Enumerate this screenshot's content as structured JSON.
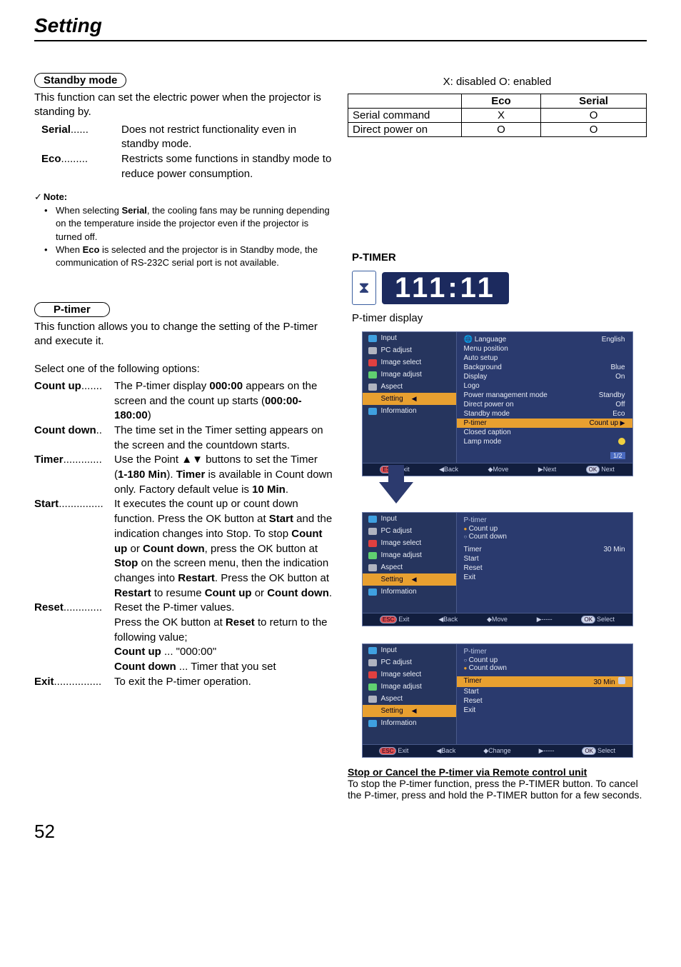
{
  "page_title": "Setting",
  "page_number": "52",
  "standby": {
    "heading": "Standby mode",
    "intro": "This function can set the electric power when the projector is standing by.",
    "rows": [
      {
        "term": "Serial",
        "dots": "......",
        "desc": "Does not restrict functionality even in standby mode."
      },
      {
        "term": "Eco",
        "dots": ".........",
        "desc": "Restricts some functions in standby mode to reduce power consumption."
      }
    ],
    "note_label": "Note:",
    "notes": [
      {
        "pre": "When selecting ",
        "b1": "Serial",
        "post": ", the cooling fans may be running depending on the temperature inside the projector even if  the projector is turned off."
      },
      {
        "pre": "When ",
        "b1": "Eco",
        "post": " is selected and the projector is in Standby mode, the communication of RS-232C serial port is not available."
      }
    ]
  },
  "ptimer": {
    "heading": "P-timer",
    "intro": "This function allows you to change the setting of the P-timer and execute it.",
    "select_line": "Select one of the following options:",
    "rows": [
      {
        "term": "Count up",
        "dots": ".......",
        "desc_parts": [
          "The P-timer display ",
          "000:00",
          " appears on the screen and the count up starts (",
          "000:00-180:00",
          ")"
        ]
      },
      {
        "term": "Count down",
        "dots": "..",
        "desc_plain": "The time set in the Timer setting appears on the screen and the countdown starts."
      },
      {
        "term": "Timer",
        "dots": ".............",
        "timer_a": "Use the Point ▲▼ buttons to set the Timer (",
        "timer_b": "1-180 Min",
        "timer_c": "). ",
        "timer_d": "Timer",
        "timer_e": " is available in Count down only. Factory default velue is ",
        "timer_f": "10 Min",
        "timer_g": "."
      },
      {
        "term": "Start",
        "dots": "...............",
        "start_a": "It executes the count up or count down function. Press the OK button at ",
        "start_b": "Start",
        "start_c": " and the indication changes into Stop. To stop ",
        "start_d": "Count up",
        "start_e": " or ",
        "start_f": "Count down",
        "start_g": ", press the OK button at ",
        "start_h": "Stop",
        "start_i": " on the screen menu, then the indication changes into ",
        "start_j": "Restart",
        "start_k": ". Press the OK button at ",
        "start_l": "Restart",
        "start_m": " to resume ",
        "start_n": "Count up",
        "start_o": " or ",
        "start_p": "Count down",
        "start_q": "."
      },
      {
        "term": "Reset",
        "dots": ".............",
        "reset_a1": "Reset the P-timer values.",
        "reset_a": "Press the OK button at ",
        "reset_b": "Reset",
        "reset_c": " to return to the following value;",
        "reset_d": "Count up",
        "reset_e": " ... \"000:00\"",
        "reset_f": "Count down",
        "reset_g": " ... Timer that you set"
      },
      {
        "term": "Exit",
        "dots": "................",
        "desc_plain": "To exit the P-timer operation."
      }
    ]
  },
  "right": {
    "legend": "X: disabled    O: enabled",
    "th_blank": "",
    "th_eco": "Eco",
    "th_serial": "Serial",
    "r1_label": "Serial command",
    "r1_eco": "X",
    "r1_serial": "O",
    "r2_label": "Direct  power on",
    "r2_eco": "O",
    "r2_serial": "O",
    "heading": "P-TIMER",
    "timer_value": "111:11",
    "caption": "P-timer display",
    "stop_title": "Stop or Cancel the P-timer via Remote control unit",
    "stop_body": "To stop the P-timer function, press the P-TIMER button. To cancel the P-timer, press and hold the P-TIMER button for a few seconds."
  },
  "osd_side": [
    {
      "icon": "ic-blue",
      "label": "Input"
    },
    {
      "icon": "ic-grey",
      "label": "PC adjust"
    },
    {
      "icon": "ic-red",
      "label": "Image select"
    },
    {
      "icon": "ic-green",
      "label": "Image adjust"
    },
    {
      "icon": "ic-grey",
      "label": "Aspect"
    },
    {
      "icon": "ic-orange",
      "label": "Setting",
      "selected": true
    },
    {
      "icon": "ic-info",
      "label": "Information"
    }
  ],
  "osd1_main": [
    {
      "k": "Language",
      "v": "English",
      "icon": true
    },
    {
      "k": "Menu position",
      "v": ""
    },
    {
      "k": "Auto setup",
      "v": ""
    },
    {
      "k": "Background",
      "v": "Blue"
    },
    {
      "k": "Display",
      "v": "On"
    },
    {
      "k": "Logo",
      "v": ""
    },
    {
      "k": "Power management mode",
      "v": "Standby"
    },
    {
      "k": "Direct power on",
      "v": "Off"
    },
    {
      "k": "Standby mode",
      "v": "Eco"
    }
  ],
  "osd1_hl": {
    "k": "P-timer",
    "v": "Count up"
  },
  "osd1_after": [
    {
      "k": "Closed caption",
      "v": ""
    },
    {
      "k": "Lamp mode",
      "v": "",
      "lamp": true
    }
  ],
  "osd1_page": "1/2",
  "osd1_foot": [
    "Exit",
    "◀Back",
    "◆Move",
    "▶Next",
    "Next"
  ],
  "osd2": {
    "title": "P-timer",
    "bullets": [
      {
        "cls": "o",
        "t": "Count up"
      },
      {
        "cls": "off",
        "t": "Count down"
      }
    ],
    "rows": [
      {
        "k": "Timer",
        "v": "30 Min"
      },
      {
        "k": "Start",
        "v": ""
      },
      {
        "k": "Reset",
        "v": ""
      },
      {
        "k": "Exit",
        "v": ""
      }
    ],
    "foot": [
      "Exit",
      "◀Back",
      "◆Move",
      "▶-----",
      "Select"
    ]
  },
  "osd3": {
    "title": "P-timer",
    "bullets": [
      {
        "cls": "off",
        "t": "Count up"
      },
      {
        "cls": "o",
        "t": "Count down"
      }
    ],
    "hl": {
      "k": "Timer",
      "v": "30 Min"
    },
    "rows_after": [
      {
        "k": "Start",
        "v": ""
      },
      {
        "k": "Reset",
        "v": ""
      },
      {
        "k": "Exit",
        "v": ""
      }
    ],
    "foot": [
      "Exit",
      "◀Back",
      "◆Change",
      "▶-----",
      "Select"
    ]
  }
}
